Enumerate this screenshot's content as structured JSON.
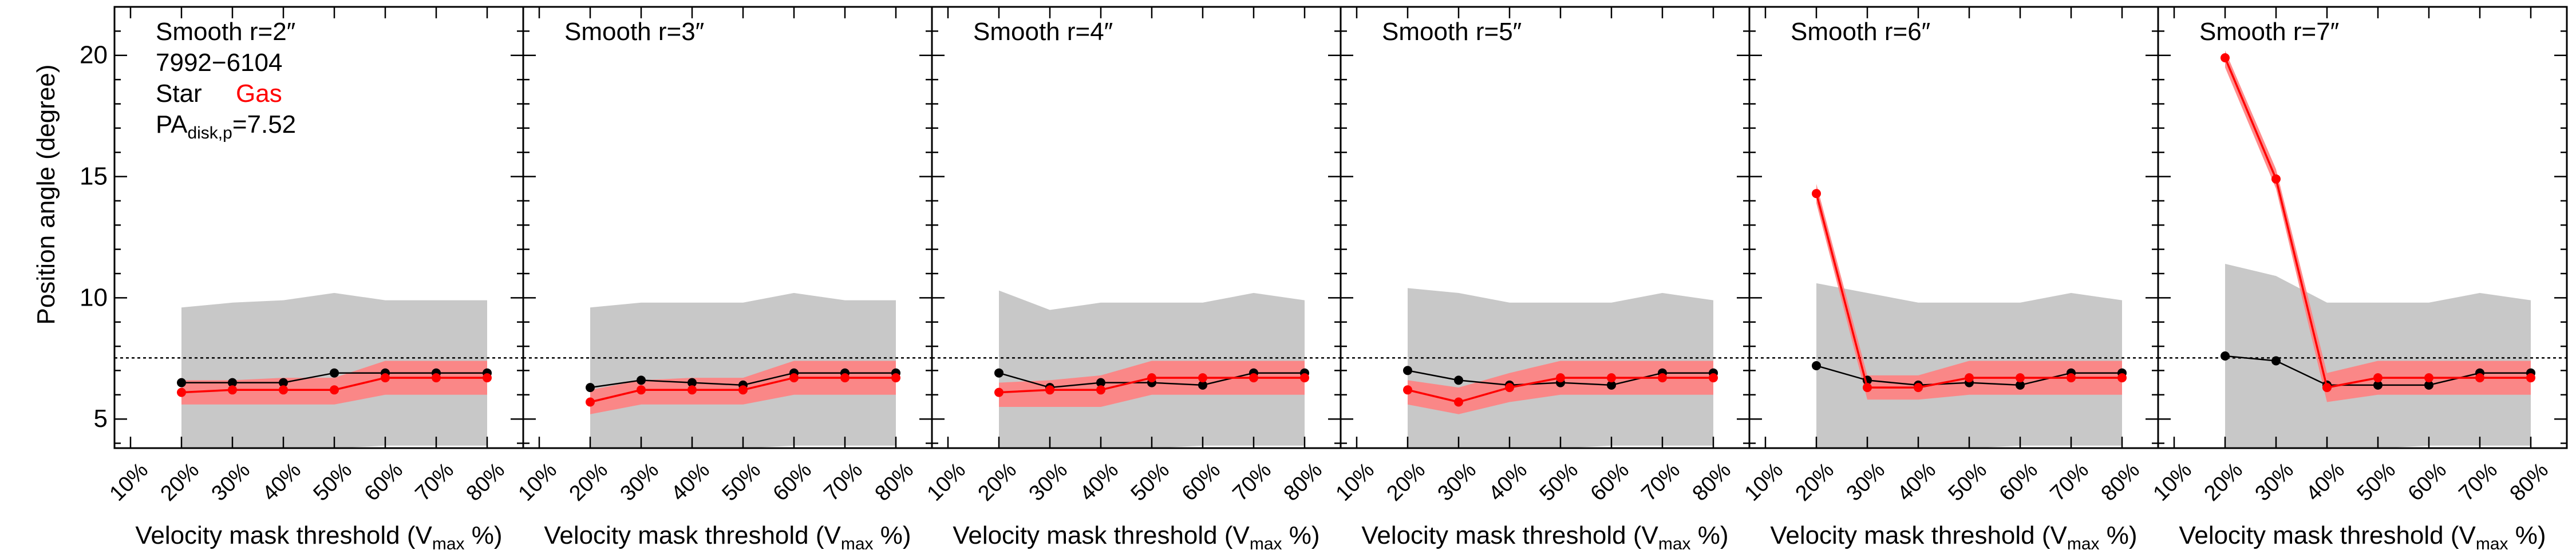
{
  "figure": {
    "ylabel": "Position angle (degree)",
    "xlabel_main": "Velocity mask threshold (V",
    "xlabel_sub": "max",
    "xlabel_end": " %)",
    "galaxy_id": "7992−6104",
    "legend_star": "Star",
    "legend_gas": "Gas",
    "pa_label_main": "PA",
    "pa_label_sub": "disk,p",
    "pa_label_value": "=7.52"
  },
  "colors": {
    "star": "#000000",
    "gas": "#ff0000",
    "gas_band": "#ff8080",
    "gray_band": "#c8c8c8",
    "reference_line": "#000000"
  },
  "chart_data": [
    {
      "type": "line",
      "title": "Smooth r=2″",
      "x": [
        "10%",
        "20%",
        "30%",
        "40%",
        "50%",
        "60%",
        "70%",
        "80%"
      ],
      "ylim": [
        3.8,
        22
      ],
      "yticks": [
        5,
        10,
        15,
        20
      ],
      "reference_line": 7.52,
      "gray_band": {
        "x": [
          "20%",
          "30%",
          "40%",
          "50%",
          "60%",
          "70%",
          "80%"
        ],
        "lower": [
          3.8,
          3.8,
          3.8,
          3.8,
          3.9,
          3.9,
          3.9
        ],
        "upper": [
          9.6,
          9.8,
          9.9,
          10.2,
          9.9,
          9.9,
          9.9
        ]
      },
      "series": [
        {
          "name": "Star",
          "x": [
            "20%",
            "30%",
            "40%",
            "50%",
            "60%",
            "70%",
            "80%"
          ],
          "values": [
            6.5,
            6.5,
            6.5,
            6.9,
            6.9,
            6.9,
            6.9
          ]
        },
        {
          "name": "Gas",
          "x": [
            "20%",
            "30%",
            "40%",
            "50%",
            "60%",
            "70%",
            "80%"
          ],
          "values": [
            6.1,
            6.2,
            6.2,
            6.2,
            6.7,
            6.7,
            6.7
          ],
          "band_lower": [
            5.6,
            5.6,
            5.6,
            5.6,
            6.0,
            6.0,
            6.0
          ],
          "band_upper": [
            6.6,
            6.6,
            6.7,
            6.7,
            7.4,
            7.4,
            7.4
          ]
        }
      ]
    },
    {
      "type": "line",
      "title": "Smooth r=3″",
      "x": [
        "10%",
        "20%",
        "30%",
        "40%",
        "50%",
        "60%",
        "70%",
        "80%"
      ],
      "ylim": [
        3.8,
        22
      ],
      "yticks": [
        5,
        10,
        15,
        20
      ],
      "reference_line": 7.52,
      "gray_band": {
        "x": [
          "20%",
          "30%",
          "40%",
          "50%",
          "60%",
          "70%",
          "80%"
        ],
        "lower": [
          3.8,
          3.8,
          3.8,
          3.8,
          3.9,
          3.9,
          3.9
        ],
        "upper": [
          9.6,
          9.8,
          9.8,
          9.8,
          10.2,
          9.9,
          9.9
        ]
      },
      "series": [
        {
          "name": "Star",
          "x": [
            "20%",
            "30%",
            "40%",
            "50%",
            "60%",
            "70%",
            "80%"
          ],
          "values": [
            6.3,
            6.6,
            6.5,
            6.4,
            6.9,
            6.9,
            6.9
          ]
        },
        {
          "name": "Gas",
          "x": [
            "20%",
            "30%",
            "40%",
            "50%",
            "60%",
            "70%",
            "80%"
          ],
          "values": [
            5.7,
            6.2,
            6.2,
            6.2,
            6.7,
            6.7,
            6.7
          ],
          "band_lower": [
            5.2,
            5.6,
            5.6,
            5.6,
            6.0,
            6.0,
            6.0
          ],
          "band_upper": [
            6.2,
            6.6,
            6.7,
            6.7,
            7.4,
            7.4,
            7.4
          ]
        }
      ]
    },
    {
      "type": "line",
      "title": "Smooth r=4″",
      "x": [
        "10%",
        "20%",
        "30%",
        "40%",
        "50%",
        "60%",
        "70%",
        "80%"
      ],
      "ylim": [
        3.8,
        22
      ],
      "yticks": [
        5,
        10,
        15,
        20
      ],
      "reference_line": 7.52,
      "gray_band": {
        "x": [
          "20%",
          "30%",
          "40%",
          "50%",
          "60%",
          "70%",
          "80%"
        ],
        "lower": [
          3.8,
          3.8,
          3.8,
          3.8,
          3.9,
          3.9,
          3.9
        ],
        "upper": [
          10.3,
          9.5,
          9.8,
          9.8,
          9.8,
          10.2,
          9.9
        ]
      },
      "series": [
        {
          "name": "Star",
          "x": [
            "20%",
            "30%",
            "40%",
            "50%",
            "60%",
            "70%",
            "80%"
          ],
          "values": [
            6.9,
            6.3,
            6.5,
            6.5,
            6.4,
            6.9,
            6.9
          ]
        },
        {
          "name": "Gas",
          "x": [
            "20%",
            "30%",
            "40%",
            "50%",
            "60%",
            "70%",
            "80%"
          ],
          "values": [
            6.1,
            6.2,
            6.2,
            6.7,
            6.7,
            6.7,
            6.7
          ],
          "band_lower": [
            5.5,
            5.5,
            5.5,
            6.0,
            6.0,
            6.0,
            6.0
          ],
          "band_upper": [
            6.5,
            6.6,
            6.8,
            7.4,
            7.4,
            7.4,
            7.4
          ]
        }
      ]
    },
    {
      "type": "line",
      "title": "Smooth r=5″",
      "x": [
        "10%",
        "20%",
        "30%",
        "40%",
        "50%",
        "60%",
        "70%",
        "80%"
      ],
      "ylim": [
        3.8,
        22
      ],
      "yticks": [
        5,
        10,
        15,
        20
      ],
      "reference_line": 7.52,
      "gray_band": {
        "x": [
          "20%",
          "30%",
          "40%",
          "50%",
          "60%",
          "70%",
          "80%"
        ],
        "lower": [
          3.8,
          3.8,
          3.8,
          3.8,
          3.9,
          3.9,
          3.9
        ],
        "upper": [
          10.4,
          10.2,
          9.8,
          9.8,
          9.8,
          10.2,
          9.9
        ]
      },
      "series": [
        {
          "name": "Star",
          "x": [
            "20%",
            "30%",
            "40%",
            "50%",
            "60%",
            "70%",
            "80%"
          ],
          "values": [
            7.0,
            6.6,
            6.4,
            6.5,
            6.4,
            6.9,
            6.9
          ]
        },
        {
          "name": "Gas",
          "x": [
            "20%",
            "30%",
            "40%",
            "50%",
            "60%",
            "70%",
            "80%"
          ],
          "values": [
            6.2,
            5.7,
            6.3,
            6.7,
            6.7,
            6.7,
            6.7
          ],
          "band_lower": [
            5.6,
            5.2,
            5.7,
            6.0,
            6.0,
            6.0,
            6.0
          ],
          "band_upper": [
            6.6,
            6.3,
            6.9,
            7.4,
            7.4,
            7.4,
            7.4
          ]
        }
      ]
    },
    {
      "type": "line",
      "title": "Smooth r=6″",
      "x": [
        "10%",
        "20%",
        "30%",
        "40%",
        "50%",
        "60%",
        "70%",
        "80%"
      ],
      "ylim": [
        3.8,
        22
      ],
      "yticks": [
        5,
        10,
        15,
        20
      ],
      "reference_line": 7.52,
      "gray_band": {
        "x": [
          "20%",
          "30%",
          "40%",
          "50%",
          "60%",
          "70%",
          "80%"
        ],
        "lower": [
          3.8,
          3.8,
          3.8,
          3.8,
          3.9,
          3.9,
          3.9
        ],
        "upper": [
          10.6,
          10.2,
          9.8,
          9.8,
          9.8,
          10.2,
          9.9
        ]
      },
      "series": [
        {
          "name": "Star",
          "x": [
            "20%",
            "30%",
            "40%",
            "50%",
            "60%",
            "70%",
            "80%"
          ],
          "values": [
            7.2,
            6.6,
            6.4,
            6.5,
            6.4,
            6.9,
            6.9
          ]
        },
        {
          "name": "Gas",
          "x": [
            "20%",
            "30%",
            "40%",
            "50%",
            "60%",
            "70%",
            "80%"
          ],
          "values": [
            14.3,
            6.3,
            6.3,
            6.7,
            6.7,
            6.7,
            6.7
          ],
          "band_lower": [
            13.9,
            5.8,
            5.8,
            6.0,
            6.0,
            6.0,
            6.0
          ],
          "band_upper": [
            14.7,
            6.8,
            6.8,
            7.4,
            7.4,
            7.4,
            7.4
          ]
        }
      ]
    },
    {
      "type": "line",
      "title": "Smooth r=7″",
      "x": [
        "10%",
        "20%",
        "30%",
        "40%",
        "50%",
        "60%",
        "70%",
        "80%"
      ],
      "ylim": [
        3.8,
        22
      ],
      "yticks": [
        5,
        10,
        15,
        20
      ],
      "reference_line": 7.52,
      "gray_band": {
        "x": [
          "20%",
          "30%",
          "40%",
          "50%",
          "60%",
          "70%",
          "80%"
        ],
        "lower": [
          3.8,
          3.8,
          3.8,
          3.8,
          3.9,
          3.9,
          3.9
        ],
        "upper": [
          11.4,
          10.9,
          9.8,
          9.8,
          9.8,
          10.2,
          9.9
        ]
      },
      "series": [
        {
          "name": "Star",
          "x": [
            "20%",
            "30%",
            "40%",
            "50%",
            "60%",
            "70%",
            "80%"
          ],
          "values": [
            7.6,
            7.4,
            6.4,
            6.4,
            6.4,
            6.9,
            6.9
          ]
        },
        {
          "name": "Gas",
          "x": [
            "20%",
            "30%",
            "40%",
            "50%",
            "60%",
            "70%",
            "80%"
          ],
          "values": [
            19.9,
            14.9,
            6.3,
            6.7,
            6.7,
            6.7,
            6.7
          ],
          "band_lower": [
            19.5,
            14.5,
            5.7,
            6.0,
            6.0,
            6.0,
            6.0
          ],
          "band_upper": [
            20.2,
            15.3,
            6.9,
            7.4,
            7.4,
            7.4,
            7.4
          ]
        }
      ]
    }
  ]
}
